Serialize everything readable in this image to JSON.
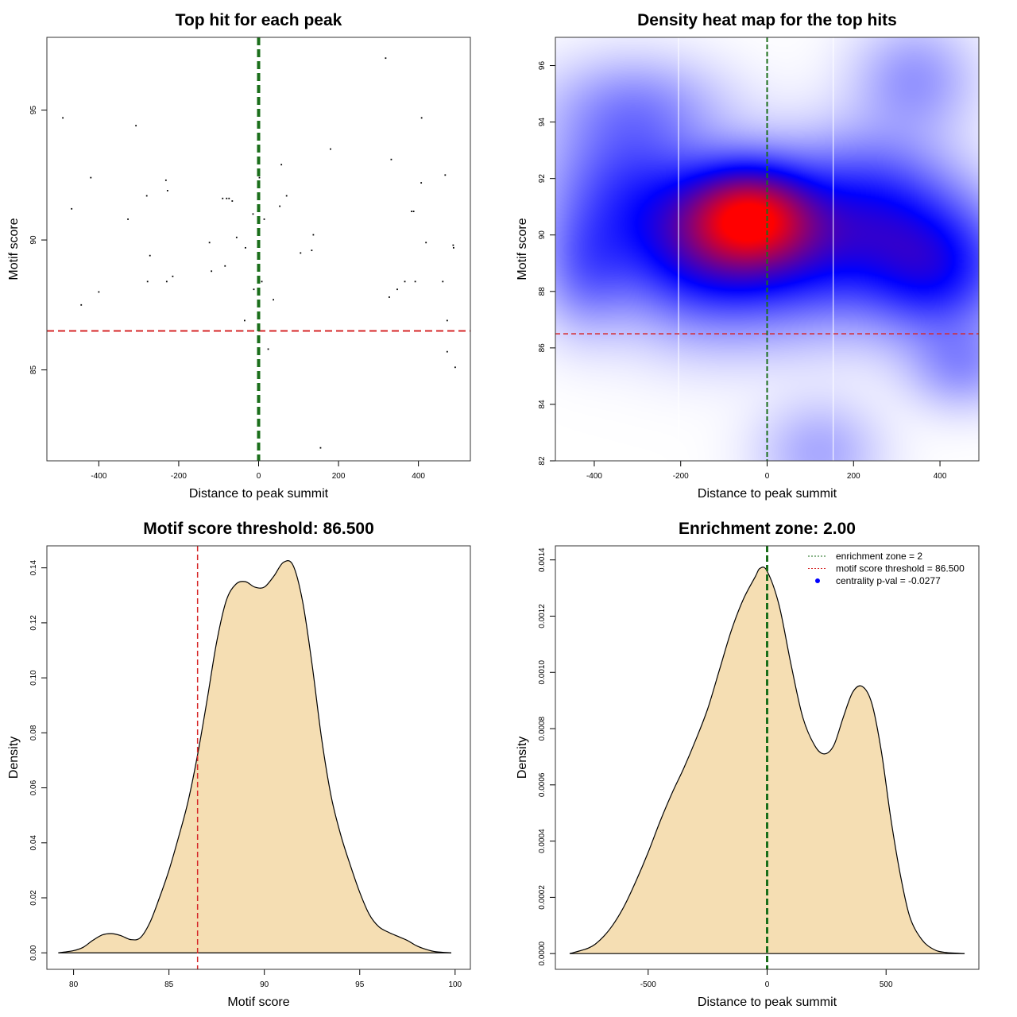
{
  "chart_data": [
    {
      "id": "p1",
      "type": "scatter",
      "title": "Top hit for each peak",
      "xlabel": "Distance to peak summit",
      "ylabel": "Motif score",
      "xlim": [
        -530,
        530
      ],
      "ylim": [
        81.5,
        97.8
      ],
      "xticks": [
        -400,
        -200,
        0,
        200,
        400
      ],
      "yticks": [
        85,
        90,
        95
      ],
      "vline": {
        "x": 0,
        "color": "#1a6e1a",
        "style": "thick-dashed"
      },
      "hline": {
        "y": 86.5,
        "color": "#d62728",
        "style": "dashed"
      },
      "points": [
        [
          -490,
          94.7
        ],
        [
          -468,
          91.2
        ],
        [
          -444,
          87.5
        ],
        [
          -420,
          92.4
        ],
        [
          -400,
          88.0
        ],
        [
          -327,
          90.8
        ],
        [
          -307,
          94.4
        ],
        [
          -280,
          91.7
        ],
        [
          -278,
          88.4
        ],
        [
          -272,
          89.4
        ],
        [
          -232,
          92.3
        ],
        [
          -228,
          91.9
        ],
        [
          -230,
          88.4
        ],
        [
          -215,
          88.6
        ],
        [
          -123,
          89.9
        ],
        [
          -118,
          88.8
        ],
        [
          -90,
          91.6
        ],
        [
          -84,
          89.0
        ],
        [
          -80,
          91.6
        ],
        [
          -74,
          91.6
        ],
        [
          -66,
          91.5
        ],
        [
          -55,
          90.1
        ],
        [
          -40,
          86.5
        ],
        [
          -35,
          86.9
        ],
        [
          -33,
          89.7
        ],
        [
          -14,
          91.0
        ],
        [
          -12,
          88.1
        ],
        [
          2,
          92.4
        ],
        [
          8,
          88.4
        ],
        [
          14,
          90.8
        ],
        [
          24,
          85.8
        ],
        [
          37,
          87.7
        ],
        [
          53,
          91.3
        ],
        [
          57,
          92.9
        ],
        [
          70,
          91.7
        ],
        [
          105,
          89.5
        ],
        [
          133,
          89.6
        ],
        [
          137,
          90.2
        ],
        [
          155,
          82.0
        ],
        [
          180,
          93.5
        ],
        [
          318,
          97.0
        ],
        [
          327,
          87.8
        ],
        [
          332,
          93.1
        ],
        [
          347,
          88.1
        ],
        [
          366,
          88.4
        ],
        [
          383,
          91.1
        ],
        [
          388,
          91.1
        ],
        [
          392,
          88.4
        ],
        [
          407,
          92.2
        ],
        [
          408,
          94.7
        ],
        [
          419,
          89.9
        ],
        [
          461,
          88.4
        ],
        [
          467,
          92.5
        ],
        [
          472,
          86.9
        ],
        [
          472,
          85.7
        ],
        [
          487,
          89.8
        ],
        [
          488,
          89.7
        ],
        [
          492,
          85.1
        ]
      ]
    },
    {
      "id": "p2",
      "type": "heatmap",
      "title": "Density heat map for the top hits",
      "xlabel": "Distance to peak summit",
      "ylabel": "Motif score",
      "xlim": [
        -490,
        490
      ],
      "ylim": [
        82,
        97
      ],
      "xticks": [
        -400,
        -200,
        0,
        200,
        400
      ],
      "yticks": [
        82,
        84,
        86,
        88,
        90,
        92,
        94,
        96
      ],
      "vline": {
        "x": 0,
        "color": "#1a6e1a",
        "style": "dashed"
      },
      "hline": {
        "y": 86.5,
        "color": "#d62728",
        "style": "dashed"
      },
      "white_vlines": [
        -205,
        153
      ],
      "colors": [
        "#ffffff",
        "#0000ff",
        "#ff0000"
      ]
    },
    {
      "id": "p3",
      "type": "area",
      "title": "Motif score threshold: 86.500",
      "xlabel": "Motif score",
      "ylabel": "Density",
      "xlim": [
        78.6,
        100.8
      ],
      "ylim": [
        -0.006,
        0.148
      ],
      "xticks": [
        80,
        85,
        90,
        95,
        100
      ],
      "yticks": [
        0.0,
        0.02,
        0.04,
        0.06,
        0.08,
        0.1,
        0.12,
        0.14
      ],
      "ytick_labels": [
        "0.00",
        "0.02",
        "0.04",
        "0.06",
        "0.08",
        "0.10",
        "0.12",
        "0.14"
      ],
      "vline": {
        "x": 86.5,
        "color": "#d62728",
        "style": "dashed"
      },
      "fill": "#f5deb3",
      "x": [
        79.2,
        80.0,
        80.5,
        81.0,
        81.5,
        82.0,
        82.5,
        83.0,
        83.5,
        84.0,
        84.5,
        85.0,
        85.5,
        86.0,
        86.5,
        87.0,
        87.5,
        88.0,
        88.5,
        89.0,
        89.5,
        90.0,
        90.5,
        91.0,
        91.5,
        92.0,
        92.5,
        93.0,
        93.5,
        94.0,
        94.5,
        95.0,
        95.5,
        96.0,
        96.5,
        97.0,
        97.5,
        98.0,
        98.5,
        99.0,
        99.8
      ],
      "y": [
        0.0,
        0.0008,
        0.002,
        0.0045,
        0.0065,
        0.007,
        0.0062,
        0.0048,
        0.0055,
        0.011,
        0.02,
        0.03,
        0.042,
        0.055,
        0.072,
        0.092,
        0.113,
        0.128,
        0.134,
        0.135,
        0.133,
        0.133,
        0.137,
        0.142,
        0.141,
        0.128,
        0.105,
        0.078,
        0.057,
        0.043,
        0.032,
        0.022,
        0.014,
        0.0095,
        0.0075,
        0.006,
        0.0045,
        0.0025,
        0.0012,
        0.0004,
        0.0
      ]
    },
    {
      "id": "p4",
      "type": "area",
      "title": "Enrichment zone: 2.00",
      "xlabel": "Distance to peak summit",
      "ylabel": "Density",
      "xlim": [
        -890,
        890
      ],
      "ylim": [
        -5.6e-05,
        0.00145
      ],
      "xticks": [
        -500,
        0,
        500
      ],
      "yticks": [
        0.0,
        0.0002,
        0.0004,
        0.0006,
        0.0008,
        0.001,
        0.0012,
        0.0014
      ],
      "ytick_labels": [
        "0.0000",
        "0.0002",
        "0.0004",
        "0.0006",
        "0.0008",
        "0.0010",
        "0.0012",
        "0.0014"
      ],
      "vline": {
        "x": 0,
        "color": "#1a6e1a",
        "style": "thick-dashed"
      },
      "fill": "#f5deb3",
      "x": [
        -830,
        -750,
        -700,
        -650,
        -600,
        -550,
        -500,
        -450,
        -400,
        -350,
        -300,
        -250,
        -200,
        -150,
        -100,
        -50,
        -30,
        0,
        50,
        100,
        150,
        200,
        240,
        280,
        320,
        360,
        400,
        440,
        480,
        520,
        560,
        600,
        650,
        700,
        750,
        830
      ],
      "y": [
        0.0,
        2e-05,
        5e-05,
        0.0001,
        0.00017,
        0.00026,
        0.00036,
        0.00047,
        0.00057,
        0.00066,
        0.00076,
        0.00087,
        0.00101,
        0.00115,
        0.00126,
        0.00134,
        0.00137,
        0.00136,
        0.00124,
        0.00103,
        0.00084,
        0.00074,
        0.00071,
        0.00074,
        0.00084,
        0.00093,
        0.00095,
        0.00089,
        0.00072,
        0.00048,
        0.00028,
        0.00013,
        5e-05,
        1.5e-05,
        4e-06,
        0.0
      ],
      "legend": [
        {
          "label": "enrichment zone = 2",
          "color": "#1a6e1a",
          "marker": "dotted-line"
        },
        {
          "label": "motif score threshold = 86.500",
          "color": "#d62728",
          "marker": "dotted-line"
        },
        {
          "label": "centrality p-val = -0.0277",
          "color": "#0000ff",
          "marker": "dot"
        }
      ]
    }
  ]
}
